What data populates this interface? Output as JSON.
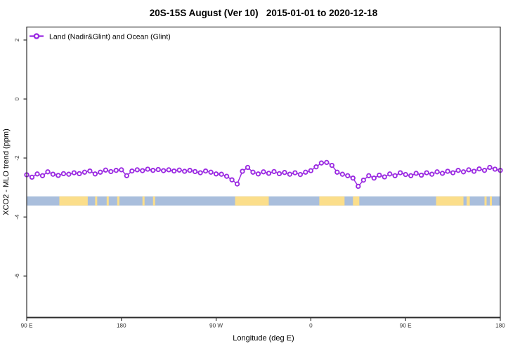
{
  "title": "20S-15S August (Ver 10)   2015-01-01 to 2020-12-18",
  "legend": {
    "label": "Land (Nadir&Glint) and Ocean (Glint)"
  },
  "axes": {
    "x_label": "Longitude (deg E)",
    "y_label": "XCO2 - MLO trend (ppm)"
  },
  "colors": {
    "series_purple": "#9B2BE2",
    "ocean_blue": "#A9BEDC",
    "land_yellow": "#FBDE8B",
    "axis": "#2E2E2E",
    "tick_text": "#3A3A3A"
  },
  "chart_data": {
    "type": "line",
    "title": "20S-15S August (Ver 10)  2015-01-01 to 2020-12-18",
    "xlabel": "Longitude (deg E)",
    "ylabel": "XCO2 - MLO trend (ppm)",
    "xlim": [
      90,
      540
    ],
    "ylim": [
      -7.4,
      2.44
    ],
    "grid": false,
    "legend_position": "top-left",
    "x_tick_values": [
      90,
      180,
      270,
      360,
      450,
      540
    ],
    "x_tick_labels": [
      "90 E",
      "180",
      "90 W",
      "0",
      "90 E",
      "180"
    ],
    "y_tick_values": [
      2,
      0,
      -2,
      -4,
      -6
    ],
    "y_tick_labels": [
      "2",
      "0",
      "-2",
      "-4",
      "-6"
    ],
    "series": [
      {
        "name": "Land (Nadir&Glint) and Ocean (Glint)",
        "color": "#9B2BE2",
        "marker": "open-circle",
        "x": [
          90,
          95,
          100,
          105,
          110,
          115,
          120,
          125,
          130,
          135,
          140,
          145,
          150,
          155,
          160,
          165,
          170,
          175,
          180,
          185,
          190,
          195,
          200,
          205,
          210,
          215,
          220,
          225,
          230,
          235,
          240,
          245,
          250,
          255,
          260,
          265,
          270,
          275,
          280,
          285,
          290,
          295,
          300,
          305,
          310,
          315,
          320,
          325,
          330,
          335,
          340,
          345,
          350,
          355,
          360,
          365,
          370,
          375,
          380,
          385,
          390,
          395,
          400,
          405,
          410,
          415,
          420,
          425,
          430,
          435,
          440,
          445,
          450,
          455,
          460,
          465,
          470,
          475,
          480,
          485,
          490,
          495,
          500,
          505,
          510,
          515,
          520,
          525,
          530,
          535,
          540
        ],
        "y": [
          -2.57,
          -2.65,
          -2.54,
          -2.6,
          -2.47,
          -2.55,
          -2.59,
          -2.53,
          -2.55,
          -2.5,
          -2.53,
          -2.48,
          -2.44,
          -2.54,
          -2.48,
          -2.41,
          -2.46,
          -2.42,
          -2.4,
          -2.6,
          -2.44,
          -2.4,
          -2.43,
          -2.38,
          -2.42,
          -2.39,
          -2.43,
          -2.4,
          -2.44,
          -2.41,
          -2.45,
          -2.42,
          -2.46,
          -2.5,
          -2.44,
          -2.48,
          -2.54,
          -2.55,
          -2.62,
          -2.74,
          -2.88,
          -2.45,
          -2.32,
          -2.48,
          -2.54,
          -2.47,
          -2.52,
          -2.46,
          -2.53,
          -2.49,
          -2.55,
          -2.5,
          -2.56,
          -2.48,
          -2.43,
          -2.3,
          -2.17,
          -2.15,
          -2.25,
          -2.48,
          -2.55,
          -2.6,
          -2.68,
          -2.96,
          -2.75,
          -2.6,
          -2.68,
          -2.58,
          -2.64,
          -2.54,
          -2.6,
          -2.5,
          -2.56,
          -2.6,
          -2.52,
          -2.58,
          -2.5,
          -2.55,
          -2.47,
          -2.52,
          -2.45,
          -2.5,
          -2.42,
          -2.47,
          -2.4,
          -2.45,
          -2.37,
          -2.42,
          -2.32,
          -2.38,
          -2.42
        ]
      }
    ],
    "surface_band": {
      "description": "land/ocean strip along longitude",
      "y_range_ppm": [
        -3.61,
        -3.3
      ],
      "ocean_color": "#A9BEDC",
      "land_color": "#FBDE8B",
      "land_segments_lon": [
        [
          121,
          148
        ],
        [
          155,
          157
        ],
        [
          166,
          168
        ],
        [
          176,
          178
        ],
        [
          200,
          202
        ],
        [
          210,
          212
        ],
        [
          288,
          320
        ],
        [
          368,
          392
        ],
        [
          400,
          406
        ],
        [
          479,
          505
        ],
        [
          508,
          511
        ],
        [
          525,
          527
        ],
        [
          530,
          532
        ]
      ]
    }
  }
}
